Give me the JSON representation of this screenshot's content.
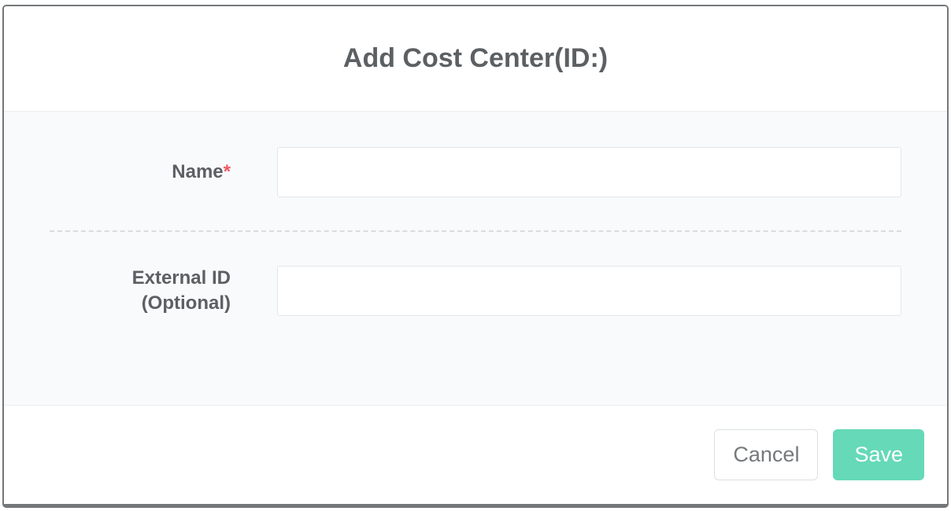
{
  "theme": {
    "heading_text_color": "#5c6063",
    "body_bg": "#f9fafb",
    "required_marker_color": "#ee5964",
    "save_button_bg": "#65d9b8",
    "save_button_text": "#ffffff"
  },
  "modal": {
    "title": "Add Cost Center(ID:)",
    "fields": [
      {
        "label": "Name",
        "required_marker": "*",
        "value": "",
        "placeholder": ""
      },
      {
        "label": "External ID (Optional)",
        "required_marker": "",
        "value": "",
        "placeholder": ""
      }
    ],
    "buttons": {
      "cancel": "Cancel",
      "save": "Save"
    }
  }
}
